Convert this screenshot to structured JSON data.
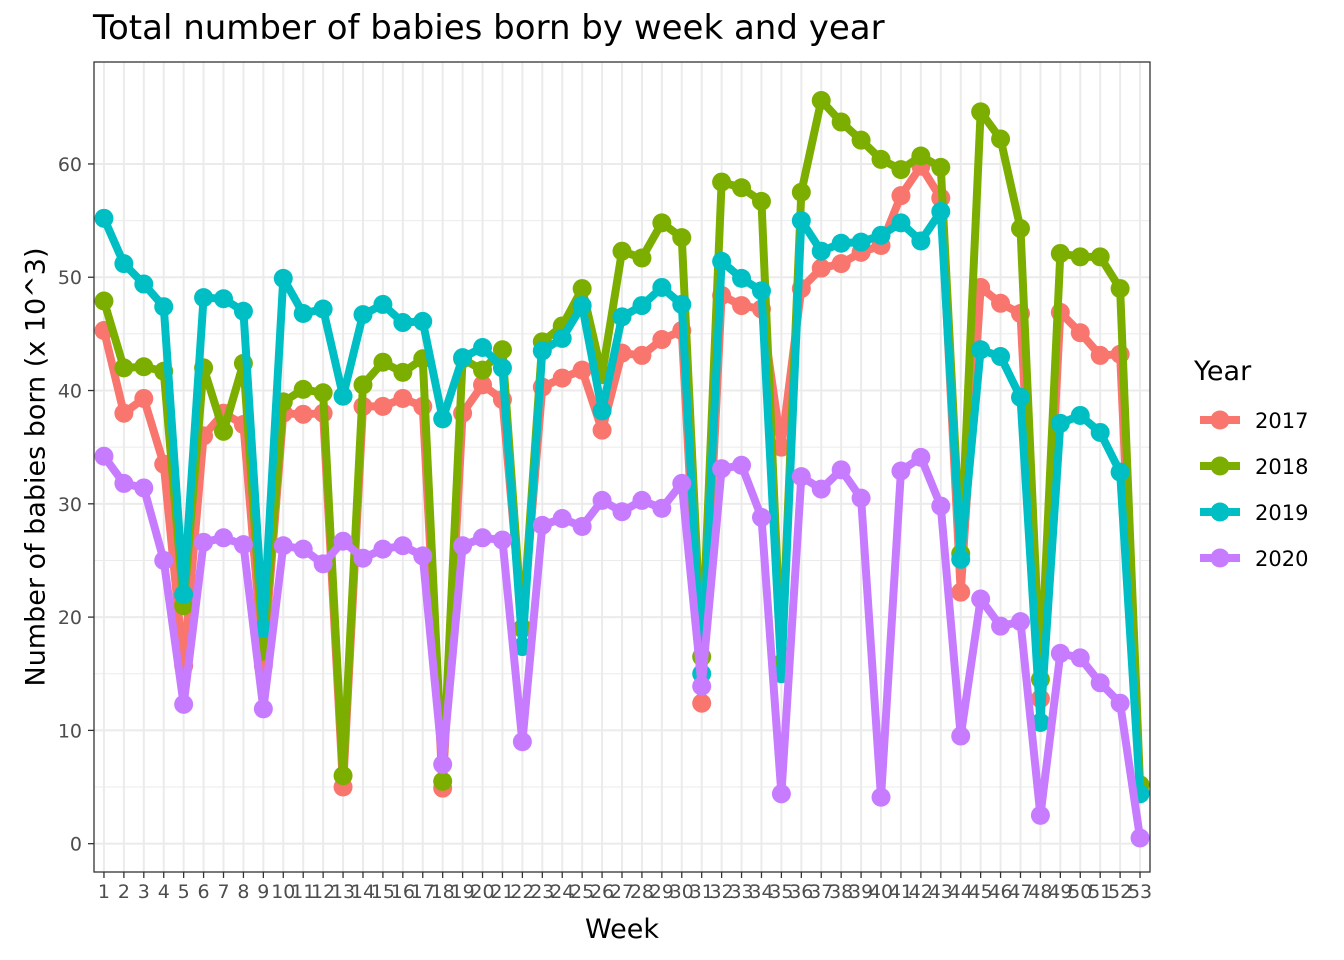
{
  "chart_data": {
    "type": "line",
    "title": "Total number of babies born by week and year",
    "xlabel": "Week",
    "ylabel": "Number of babies born (x 10^3)",
    "xlim": [
      0.5,
      53.5
    ],
    "ylim": [
      -2.5,
      69
    ],
    "y_ticks": [
      0,
      10,
      20,
      30,
      40,
      50,
      60
    ],
    "x": [
      1,
      2,
      3,
      4,
      5,
      6,
      7,
      8,
      9,
      10,
      11,
      12,
      13,
      14,
      15,
      16,
      17,
      18,
      19,
      20,
      21,
      22,
      23,
      24,
      25,
      26,
      27,
      28,
      29,
      30,
      31,
      32,
      33,
      34,
      35,
      36,
      37,
      38,
      39,
      40,
      41,
      42,
      43,
      44,
      45,
      46,
      47,
      48,
      49,
      50,
      51,
      52,
      53
    ],
    "x_tick_labels": [
      "1",
      "2",
      "3",
      "4",
      "5",
      "6",
      "7",
      "8",
      "9",
      "10",
      "11",
      "12",
      "13",
      "14",
      "15",
      "16",
      "17",
      "18",
      "19",
      "20",
      "21",
      "22",
      "23",
      "24",
      "25",
      "26",
      "27",
      "28",
      "29",
      "30",
      "31",
      "32",
      "33",
      "34",
      "35",
      "36",
      "37",
      "38",
      "39",
      "40",
      "41",
      "42",
      "43",
      "44",
      "45",
      "46",
      "47",
      "48",
      "49",
      "50",
      "51",
      "52",
      "53"
    ],
    "grid": true,
    "legend": {
      "title": "Year",
      "position": "right"
    },
    "series": [
      {
        "name": "2017",
        "color": "#F8766D",
        "values": [
          45.3,
          38.0,
          39.3,
          33.5,
          15.7,
          36.0,
          38.0,
          37.0,
          15.7,
          38.0,
          37.9,
          38.0,
          5.0,
          38.6,
          38.6,
          39.3,
          38.6,
          4.9,
          38.0,
          40.5,
          39.2,
          19.0,
          40.3,
          41.1,
          41.8,
          36.5,
          43.3,
          43.1,
          44.5,
          45.3,
          12.4,
          48.4,
          47.5,
          47.2,
          35.0,
          49.0,
          50.8,
          51.2,
          52.2,
          52.8,
          57.2,
          59.8,
          57.0,
          22.2,
          49.1,
          47.7,
          46.8,
          12.8,
          46.9,
          45.1,
          43.1,
          43.2,
          4.5
        ]
      },
      {
        "name": "2018",
        "color": "#7CAE00",
        "values": [
          47.9,
          42.0,
          42.1,
          41.7,
          21.0,
          42.0,
          36.4,
          42.4,
          17.0,
          39.0,
          40.1,
          39.8,
          6.0,
          40.5,
          42.5,
          41.6,
          42.8,
          5.5,
          42.8,
          41.8,
          43.6,
          19.0,
          44.3,
          45.7,
          49.0,
          41.4,
          52.3,
          51.7,
          54.8,
          53.5,
          16.5,
          58.4,
          57.9,
          56.7,
          15.9,
          57.5,
          65.6,
          63.7,
          62.1,
          60.4,
          59.5,
          60.7,
          59.7,
          25.6,
          64.6,
          62.2,
          54.3,
          14.5,
          52.1,
          51.8,
          51.8,
          49.0,
          5.2
        ]
      },
      {
        "name": "2019",
        "color": "#00BFC4",
        "values": [
          55.2,
          51.2,
          49.4,
          47.4,
          22.0,
          48.2,
          48.1,
          47.0,
          19.0,
          49.9,
          46.8,
          47.2,
          39.5,
          46.7,
          47.6,
          46.0,
          46.1,
          37.5,
          42.9,
          43.8,
          42.0,
          17.4,
          43.5,
          44.6,
          47.5,
          38.2,
          46.5,
          47.5,
          49.1,
          47.6,
          15.0,
          51.4,
          49.9,
          48.8,
          15.0,
          55.0,
          52.3,
          53.0,
          53.1,
          53.7,
          54.8,
          53.2,
          55.8,
          25.1,
          43.6,
          43.0,
          39.4,
          10.7,
          37.1,
          37.8,
          36.3,
          32.8,
          4.4
        ]
      },
      {
        "name": "2020",
        "color": "#C77CFF",
        "values": [
          34.2,
          31.8,
          31.4,
          25.0,
          12.3,
          26.6,
          27.0,
          26.4,
          11.9,
          26.3,
          26.0,
          24.7,
          26.7,
          25.2,
          26.0,
          26.3,
          25.4,
          7.0,
          26.3,
          27.0,
          26.8,
          9.0,
          28.1,
          28.7,
          28.0,
          30.3,
          29.3,
          30.3,
          29.6,
          31.8,
          13.9,
          33.1,
          33.4,
          28.8,
          4.4,
          32.4,
          31.3,
          33.0,
          30.5,
          4.1,
          32.9,
          34.1,
          29.8,
          9.5,
          21.6,
          19.2,
          19.6,
          2.5,
          16.8,
          16.4,
          14.2,
          12.4,
          0.5
        ]
      }
    ]
  }
}
